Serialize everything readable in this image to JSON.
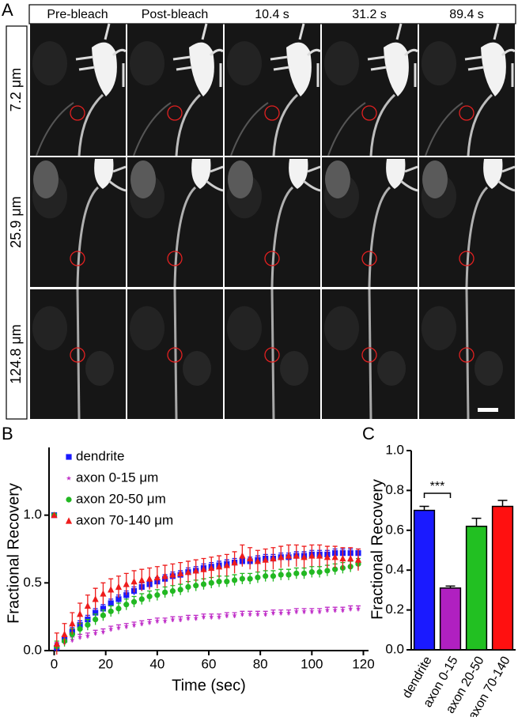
{
  "figure_a": {
    "label": "A",
    "columns": [
      "Pre-bleach",
      "Post-bleach",
      "10.4 s",
      "31.2 s",
      "89.4 s"
    ],
    "rows": [
      "7.2 μm",
      "25.9 μm",
      "124.8 μm"
    ]
  },
  "chart_data": [
    {
      "type": "scatter",
      "panel_label": "B",
      "x_label": "Time (sec)",
      "y_label": "Fractional Recovery",
      "x": [
        0,
        1,
        4,
        7,
        10,
        13,
        16,
        19,
        22,
        25,
        28,
        31,
        34,
        37,
        40,
        43,
        46,
        49,
        52,
        55,
        58,
        61,
        64,
        67,
        70,
        73,
        76,
        79,
        82,
        85,
        88,
        91,
        94,
        97,
        100,
        103,
        106,
        109,
        112,
        115,
        118
      ],
      "series": [
        {
          "name": "dendrite",
          "color": "#1a1aff",
          "marker": "square",
          "error": 0.03,
          "values": [
            1.0,
            0.02,
            0.08,
            0.14,
            0.19,
            0.23,
            0.28,
            0.31,
            0.35,
            0.38,
            0.41,
            0.44,
            0.47,
            0.49,
            0.51,
            0.53,
            0.55,
            0.56,
            0.58,
            0.59,
            0.61,
            0.62,
            0.63,
            0.64,
            0.65,
            0.66,
            0.66,
            0.67,
            0.68,
            0.68,
            0.69,
            0.69,
            0.7,
            0.7,
            0.71,
            0.71,
            0.71,
            0.72,
            0.72,
            0.72,
            0.72
          ]
        },
        {
          "name": "axon 0-15 μm",
          "color": "#c030c8",
          "marker": "star",
          "error": 0.02,
          "values": [
            1.0,
            0.04,
            0.06,
            0.08,
            0.1,
            0.11,
            0.13,
            0.14,
            0.16,
            0.17,
            0.18,
            0.19,
            0.2,
            0.21,
            0.22,
            0.22,
            0.23,
            0.23,
            0.24,
            0.24,
            0.25,
            0.25,
            0.25,
            0.26,
            0.26,
            0.27,
            0.27,
            0.27,
            0.27,
            0.28,
            0.28,
            0.28,
            0.29,
            0.29,
            0.29,
            0.29,
            0.3,
            0.3,
            0.3,
            0.31,
            0.31
          ]
        },
        {
          "name": "axon 20-50 μm",
          "color": "#22b822",
          "marker": "circle",
          "error": 0.04,
          "values": [
            1.0,
            0.03,
            0.07,
            0.12,
            0.16,
            0.19,
            0.23,
            0.26,
            0.29,
            0.31,
            0.34,
            0.36,
            0.38,
            0.4,
            0.41,
            0.43,
            0.44,
            0.45,
            0.47,
            0.48,
            0.49,
            0.5,
            0.51,
            0.51,
            0.52,
            0.53,
            0.53,
            0.54,
            0.55,
            0.55,
            0.56,
            0.56,
            0.57,
            0.57,
            0.58,
            0.58,
            0.59,
            0.6,
            0.61,
            0.62,
            0.64
          ]
        },
        {
          "name": "axon 70-140 μm",
          "color": "#ee1c1c",
          "marker": "triangle",
          "error": 0.08,
          "values": [
            1.0,
            0.05,
            0.12,
            0.2,
            0.27,
            0.33,
            0.38,
            0.42,
            0.45,
            0.47,
            0.49,
            0.51,
            0.52,
            0.53,
            0.54,
            0.55,
            0.56,
            0.57,
            0.58,
            0.59,
            0.6,
            0.61,
            0.62,
            0.63,
            0.65,
            0.7,
            0.68,
            0.66,
            0.67,
            0.68,
            0.69,
            0.7,
            0.7,
            0.69,
            0.7,
            0.7,
            0.69,
            0.69,
            0.68,
            0.68,
            0.67
          ]
        }
      ],
      "xlim": [
        -2,
        122
      ],
      "xticks": [
        0,
        20,
        40,
        60,
        80,
        100,
        120
      ],
      "ylim": [
        0,
        1.5
      ],
      "yticks": [
        {
          "value": 0,
          "label": "0.0"
        },
        0.5,
        {
          "value": 1,
          "label": "1.0"
        }
      ]
    },
    {
      "type": "bar",
      "panel_label": "C",
      "y_label": "Fractional Recovery",
      "categories": [
        "dendrite",
        "axon 0-15",
        "axon 20-50",
        "axon 70-140"
      ],
      "values": [
        0.7,
        0.31,
        0.62,
        0.72
      ],
      "errors": [
        0.02,
        0.01,
        0.04,
        0.03
      ],
      "colors": [
        "#1a1aff",
        "#b020c0",
        "#22c022",
        "#ff1010"
      ],
      "annotation": "***",
      "ylim": [
        0,
        1
      ],
      "yticks": [
        {
          "value": 0,
          "label": "0.0"
        },
        0.2,
        0.4,
        0.6,
        0.8,
        {
          "value": 1,
          "label": "1.0"
        }
      ]
    }
  ]
}
